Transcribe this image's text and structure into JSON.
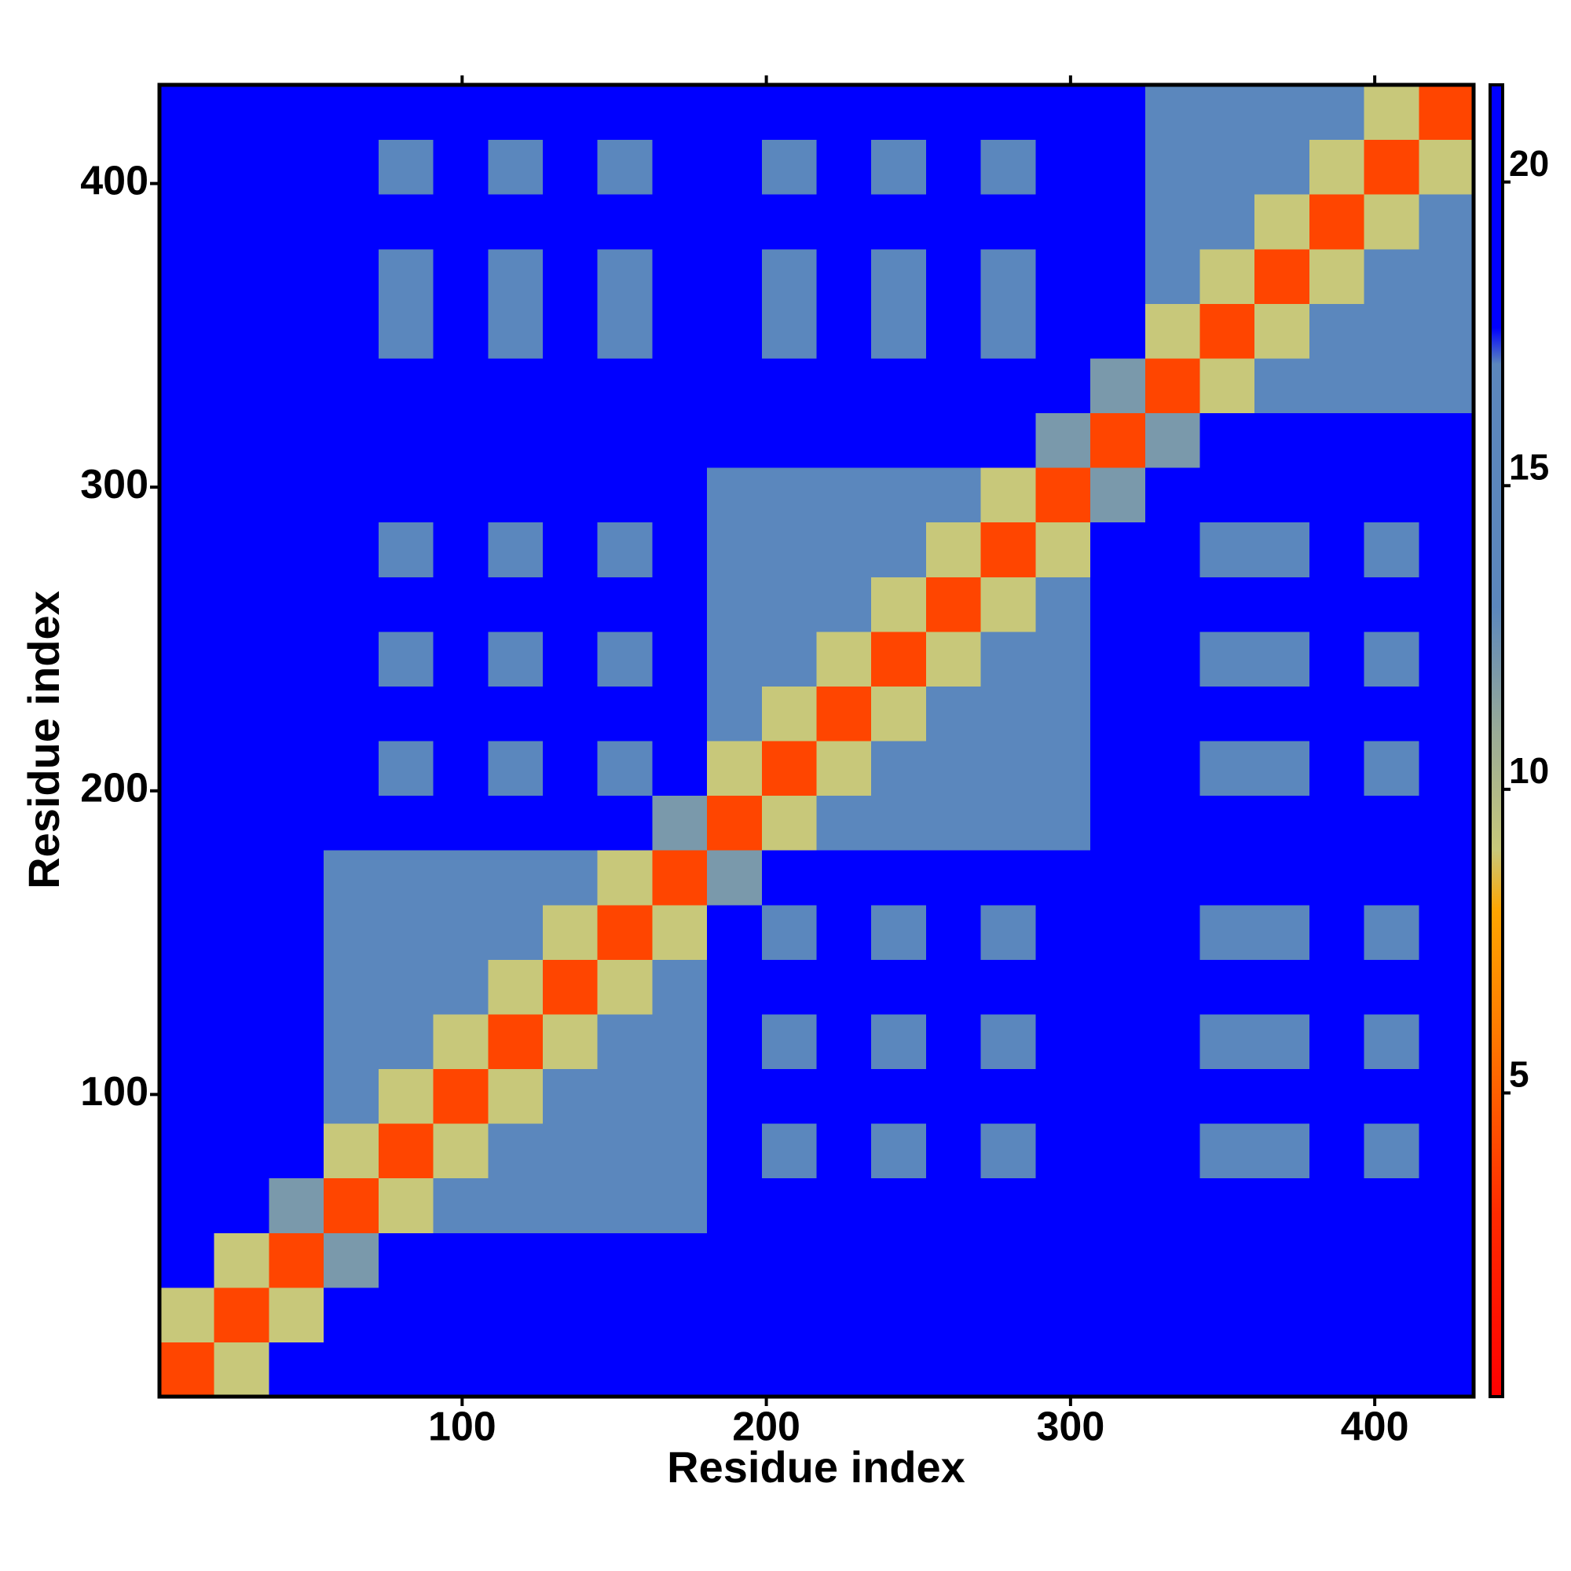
{
  "chart_data": {
    "type": "heatmap",
    "xlabel": "Residue index",
    "ylabel": "Residue index",
    "xlim": [
      0.5,
      432.5
    ],
    "ylim": [
      0.5,
      432.5
    ],
    "xticks": [
      100,
      200,
      300,
      400
    ],
    "yticks": [
      100,
      200,
      300,
      400
    ],
    "bins": [
      0.5,
      18.5,
      36.5,
      54.5,
      72.5,
      90.5,
      108.5,
      126.5,
      144.5,
      162.5,
      180.5,
      198.5,
      216.5,
      234.5,
      252.5,
      270.5,
      288.5,
      306.5,
      324.5,
      342.5,
      360.5,
      378.5,
      396.5,
      414.5,
      432.5
    ],
    "z": [
      [
        4,
        9,
        20,
        21,
        21,
        21,
        21,
        21,
        21,
        21,
        21,
        21,
        21,
        21,
        21,
        21,
        21,
        21,
        21,
        21,
        21,
        21,
        21,
        21
      ],
      [
        9,
        4,
        9,
        21,
        21,
        21,
        21,
        21,
        21,
        21,
        21,
        21,
        21,
        21,
        21,
        21,
        21,
        21,
        21,
        21,
        21,
        21,
        21,
        21
      ],
      [
        20,
        9,
        4,
        12,
        21,
        21,
        21,
        21,
        21,
        21,
        21,
        21,
        21,
        21,
        21,
        21,
        21,
        21,
        21,
        21,
        21,
        21,
        21,
        21
      ],
      [
        21,
        21,
        12,
        4,
        9,
        13,
        13,
        13,
        13,
        13,
        19,
        19,
        19,
        19,
        19,
        19,
        19,
        21,
        19,
        19,
        19,
        19,
        19,
        19
      ],
      [
        21,
        21,
        21,
        9,
        4,
        9,
        13,
        13,
        13,
        13,
        19,
        16,
        19,
        16,
        19,
        16,
        19,
        21,
        19,
        16,
        16,
        19,
        16,
        19
      ],
      [
        21,
        21,
        21,
        13,
        9,
        4,
        9,
        13,
        13,
        13,
        19,
        19,
        19,
        19,
        19,
        19,
        19,
        21,
        19,
        19,
        19,
        19,
        19,
        19
      ],
      [
        21,
        21,
        21,
        13,
        13,
        9,
        4,
        9,
        13,
        13,
        19,
        16,
        19,
        16,
        19,
        16,
        19,
        21,
        19,
        16,
        16,
        19,
        16,
        19
      ],
      [
        21,
        21,
        21,
        13,
        13,
        13,
        9,
        4,
        9,
        13,
        19,
        19,
        19,
        19,
        19,
        19,
        19,
        21,
        19,
        19,
        19,
        19,
        19,
        19
      ],
      [
        21,
        21,
        21,
        13,
        13,
        13,
        13,
        9,
        4,
        9,
        19,
        16,
        19,
        16,
        19,
        16,
        19,
        21,
        19,
        16,
        16,
        19,
        16,
        19
      ],
      [
        21,
        21,
        21,
        13,
        13,
        13,
        13,
        13,
        9,
        4,
        12,
        19,
        19,
        19,
        19,
        19,
        19,
        21,
        19,
        19,
        19,
        19,
        19,
        19
      ],
      [
        21,
        21,
        21,
        19,
        19,
        19,
        19,
        19,
        19,
        12,
        4,
        9,
        13,
        13,
        13,
        13,
        13,
        21,
        19,
        19,
        19,
        19,
        19,
        19
      ],
      [
        21,
        21,
        21,
        19,
        16,
        19,
        16,
        19,
        16,
        19,
        9,
        4,
        9,
        13,
        13,
        13,
        13,
        21,
        19,
        16,
        16,
        19,
        16,
        19
      ],
      [
        21,
        21,
        21,
        19,
        19,
        19,
        19,
        19,
        19,
        19,
        13,
        9,
        4,
        9,
        13,
        13,
        13,
        21,
        19,
        19,
        19,
        19,
        19,
        19
      ],
      [
        21,
        21,
        21,
        19,
        16,
        19,
        16,
        19,
        16,
        19,
        13,
        13,
        9,
        4,
        9,
        13,
        13,
        21,
        19,
        16,
        16,
        19,
        16,
        19
      ],
      [
        21,
        21,
        21,
        19,
        19,
        19,
        19,
        19,
        19,
        19,
        13,
        13,
        13,
        9,
        4,
        9,
        13,
        21,
        19,
        19,
        19,
        19,
        19,
        19
      ],
      [
        21,
        21,
        21,
        19,
        16,
        19,
        16,
        19,
        16,
        19,
        13,
        13,
        13,
        13,
        9,
        4,
        9,
        21,
        19,
        16,
        16,
        19,
        16,
        19
      ],
      [
        21,
        21,
        21,
        19,
        19,
        19,
        19,
        19,
        19,
        19,
        13,
        13,
        13,
        13,
        13,
        9,
        4,
        12,
        19,
        19,
        19,
        19,
        19,
        19
      ],
      [
        21,
        21,
        21,
        21,
        21,
        21,
        21,
        21,
        21,
        21,
        21,
        21,
        21,
        21,
        21,
        21,
        12,
        4,
        12,
        21,
        21,
        21,
        21,
        21
      ],
      [
        21,
        21,
        21,
        19,
        19,
        19,
        19,
        19,
        19,
        19,
        19,
        19,
        19,
        19,
        19,
        19,
        19,
        12,
        4,
        9,
        13,
        13,
        13,
        13
      ],
      [
        21,
        21,
        21,
        19,
        16,
        19,
        16,
        19,
        16,
        19,
        19,
        16,
        19,
        16,
        19,
        16,
        19,
        21,
        9,
        4,
        9,
        13,
        13,
        13
      ],
      [
        21,
        21,
        21,
        19,
        16,
        19,
        16,
        19,
        16,
        19,
        19,
        16,
        19,
        16,
        19,
        16,
        19,
        21,
        13,
        9,
        4,
        9,
        13,
        13
      ],
      [
        21,
        21,
        21,
        19,
        19,
        19,
        19,
        19,
        19,
        19,
        19,
        19,
        19,
        19,
        19,
        19,
        19,
        21,
        13,
        13,
        9,
        4,
        9,
        13
      ],
      [
        21,
        21,
        21,
        19,
        16,
        19,
        16,
        19,
        16,
        19,
        19,
        16,
        19,
        16,
        19,
        16,
        19,
        21,
        13,
        13,
        13,
        9,
        4,
        9
      ],
      [
        21,
        21,
        21,
        19,
        19,
        19,
        19,
        19,
        19,
        19,
        19,
        19,
        19,
        19,
        19,
        19,
        19,
        21,
        13,
        13,
        13,
        13,
        9,
        4
      ]
    ],
    "colorscale": [
      [
        0,
        "#ff0000"
      ],
      [
        3,
        "#ff2a00"
      ],
      [
        6,
        "#ff7a00"
      ],
      [
        8,
        "#ffa500"
      ],
      [
        9,
        "#c8c87a"
      ],
      [
        11,
        "#98aa98"
      ],
      [
        13,
        "#5b87bd"
      ],
      [
        17,
        "#5b87bd"
      ],
      [
        17.6,
        "#0000ff"
      ],
      [
        21.6,
        "#0000ff"
      ]
    ],
    "colorbar": {
      "lim": [
        0,
        21.6
      ],
      "ticks": [
        5,
        10,
        15,
        20
      ]
    }
  }
}
